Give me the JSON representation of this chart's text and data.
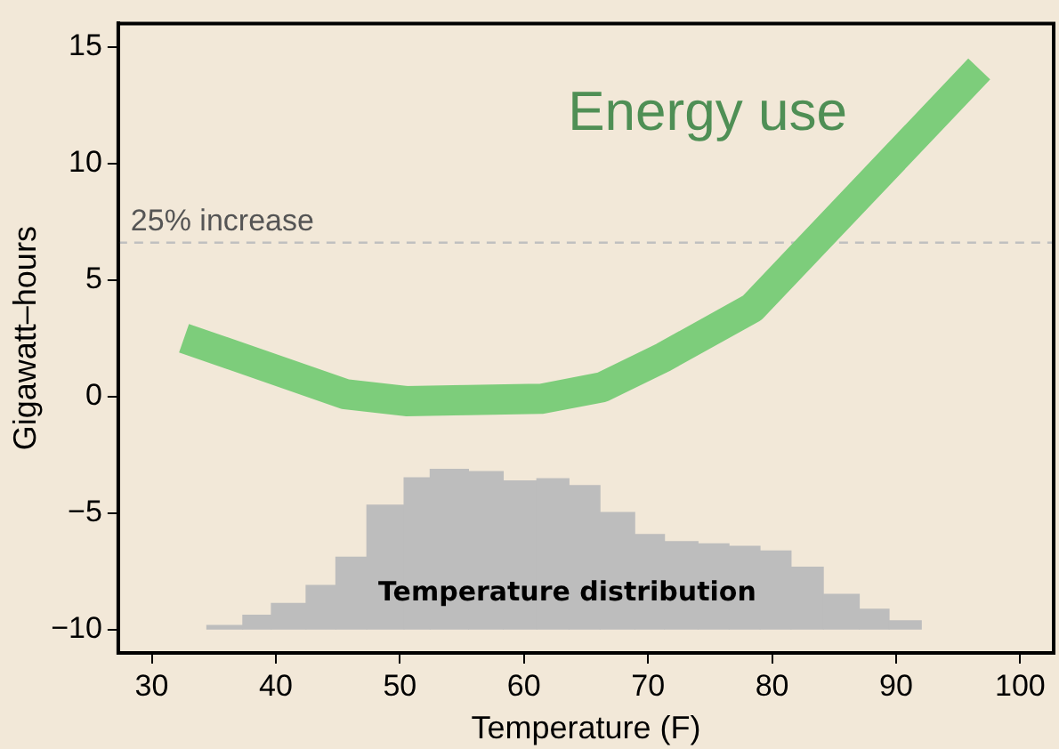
{
  "chart_data": {
    "type": "line",
    "xlabel": "Temperature (F)",
    "ylabel": "Gigawatt–hours",
    "xlim": [
      27.3,
      102.7
    ],
    "xticks": [
      30,
      40,
      50,
      60,
      70,
      80,
      90,
      100
    ],
    "ylim": [
      -11,
      16
    ],
    "yticks": [
      {
        "value": -10,
        "label": "−10"
      },
      {
        "value": -5,
        "label": "−5"
      },
      0,
      5,
      10,
      15
    ],
    "grid": false,
    "legend": false,
    "ref_lines": [
      {
        "axis": "y",
        "value": 6.6,
        "label": "25% increase",
        "color": "#c0c0c0",
        "line_style": "dashed"
      }
    ],
    "series": [
      {
        "name": "Energy use",
        "color": "#7dcd7b",
        "x": [
          32.6,
          45.6,
          50.5,
          55.5,
          61.4,
          66.3,
          71.3,
          78.4,
          96.7
        ],
        "values": [
          2.5,
          0.1,
          -0.2,
          -0.15,
          -0.1,
          0.4,
          1.7,
          3.8,
          14.05
        ]
      },
      {
        "name": "Temperature distribution",
        "type": "histogram",
        "color": "#bdbdbd",
        "bins": [
          34.4,
          37.3,
          39.6,
          42.4,
          44.8,
          47.3,
          50.3,
          52.4,
          55.5,
          58.3,
          61,
          63.6,
          66.1,
          68.9,
          71.3,
          74,
          76.5,
          79,
          81.5,
          84.1,
          87,
          89.4,
          92
        ],
        "base": [
          -10,
          -10,
          -10,
          -10,
          -10,
          -10,
          -10,
          -10,
          -10,
          -10,
          -10,
          -10,
          -10,
          -10,
          -10,
          -10,
          -10,
          -10,
          -10,
          -10,
          -10,
          -10
        ],
        "values": [
          0.2,
          0.64,
          1.15,
          1.92,
          3.13,
          5.36,
          6.54,
          6.9,
          6.8,
          6.4,
          6.5,
          6.2,
          5.05,
          4.1,
          3.8,
          3.7,
          3.6,
          3.4,
          2.7,
          1.54,
          0.9,
          0.4
        ]
      }
    ]
  }
}
